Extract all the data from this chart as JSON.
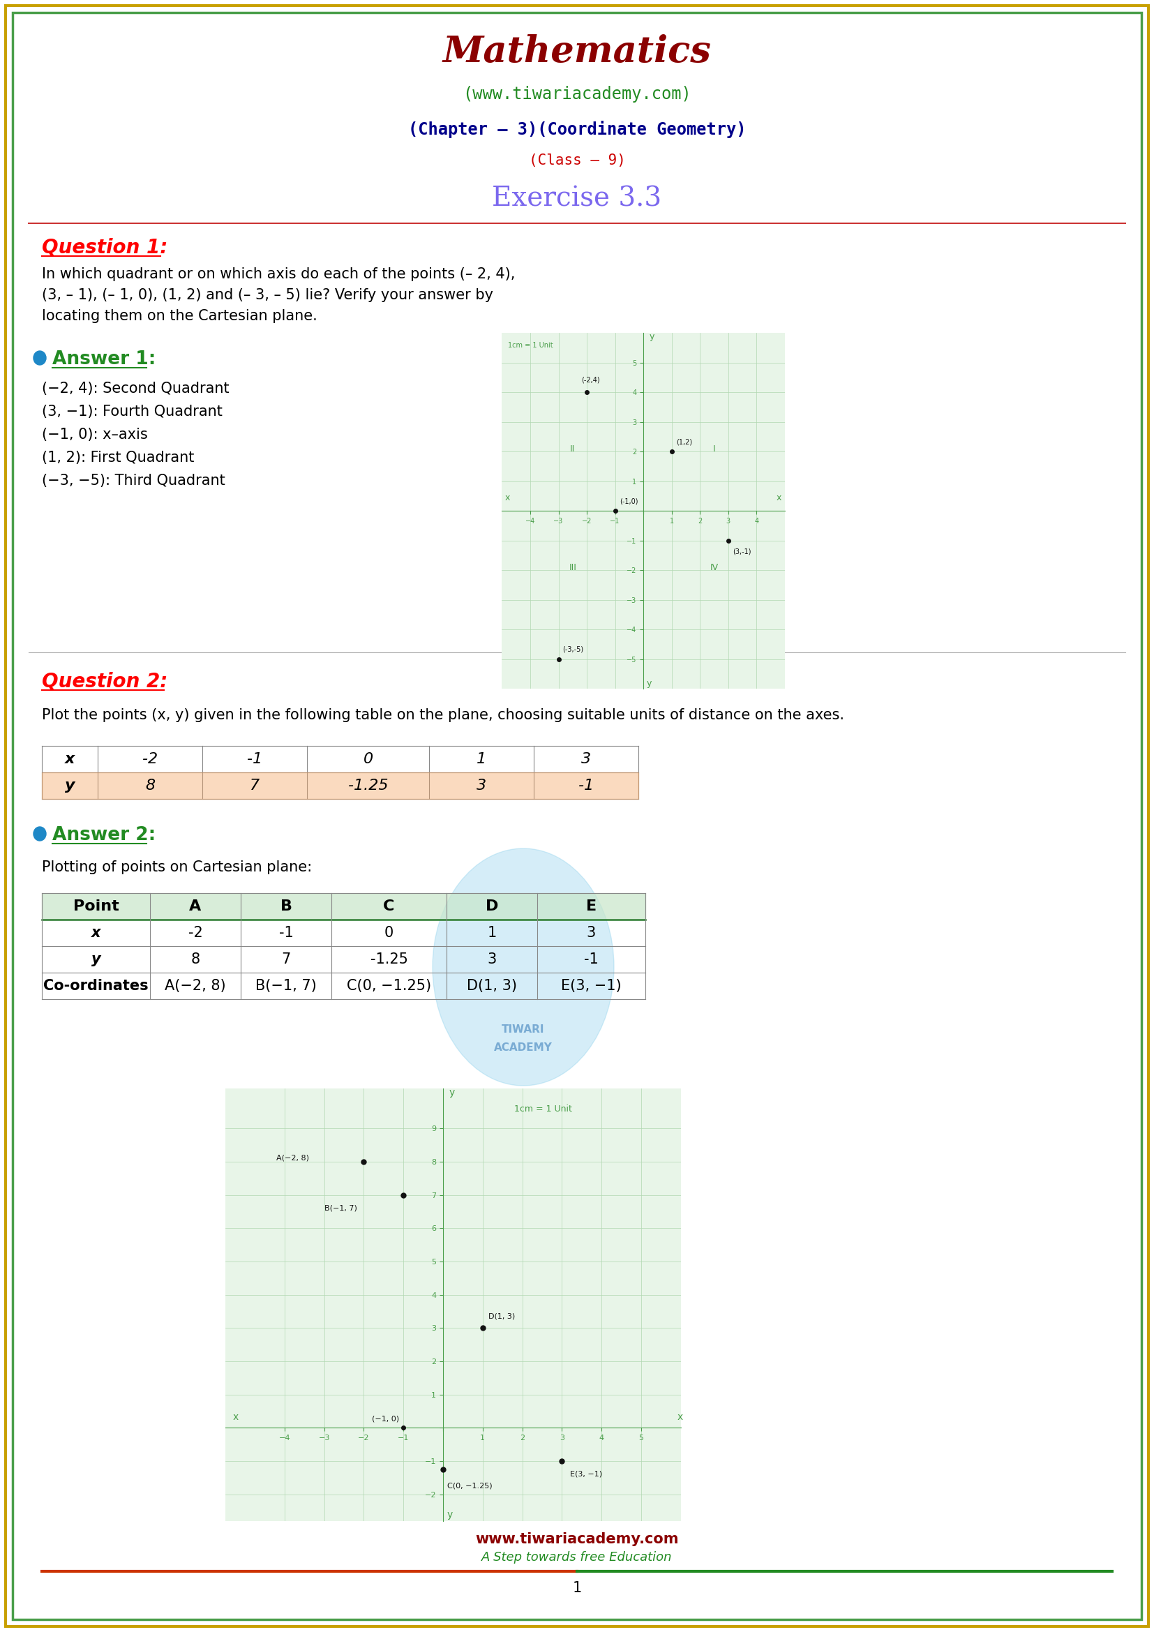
{
  "title": "Mathematics",
  "subtitle_web": "(www.tiwariacademy.com)",
  "subtitle_chapter": "(Chapter – 3)(Coordinate Geometry)",
  "subtitle_class": "(Class – 9)",
  "exercise": "Exercise 3.3",
  "page_bg": "#ffffff",
  "border_outer_color": "#c8a000",
  "border_inner_color": "#4a9e4a",
  "title_color": "#8b0000",
  "web_color": "#228b22",
  "chapter_color": "#00008b",
  "class_color": "#cc0000",
  "exercise_color": "#7b68ee",
  "question_color": "#ff0000",
  "answer_color": "#228b22",
  "body_color": "#000000",
  "q1_text": "In which quadrant or on which axis do each of the points (– 2, 4),\n(3, – 1), (– 1, 0), (1, 2) and (– 3, – 5) lie? Verify your answer by\nlocating them on the Cartesian plane.",
  "a1_lines": [
    "(−2, 4): Second Quadrant",
    "(3, −1): Fourth Quadrant",
    "(−1, 0): x–axis",
    "(1, 2): First Quadrant",
    "(−3, −5): Third Quadrant"
  ],
  "q2_text": "Plot the points (x, y) given in the following table on the plane, choosing suitable units of distance on the axes.",
  "table1_x": [
    "-2",
    "-1",
    "0",
    "1",
    "3"
  ],
  "table1_y": [
    "8",
    "7",
    "-1.25",
    "3",
    "-1"
  ],
  "table1_header_x": "x",
  "table1_header_y": "y",
  "a2_subtitle": "Plotting of points on Cartesian plane:",
  "table2_headers": [
    "Point",
    "A",
    "B",
    "C",
    "D",
    "E"
  ],
  "table2_x": [
    "-2",
    "-1",
    "0",
    "1",
    "3"
  ],
  "table2_y": [
    "8",
    "7",
    "-1.25",
    "3",
    "-1"
  ],
  "table2_coords": [
    "A(−2, 8)",
    "B(−1, 7)",
    "C(0, −1.25)",
    "D(1, 3)",
    "E(3, −1)"
  ],
  "footer_web": "www.tiwariacademy.com",
  "footer_tagline": "A Step towards free Education",
  "page_num": "1",
  "graph1_points": [
    [
      -2,
      4
    ],
    [
      3,
      -1
    ],
    [
      -1,
      0
    ],
    [
      1,
      2
    ],
    [
      -3,
      -5
    ]
  ],
  "graph1_labels": [
    "(-2,4)",
    "(3,-1)",
    "(-1,0)",
    "(1,2)",
    "(-3,-5)"
  ],
  "graph2_points": [
    [
      -2,
      8
    ],
    [
      -1,
      7
    ],
    [
      0,
      -1.25
    ],
    [
      1,
      3
    ],
    [
      3,
      -1
    ]
  ],
  "graph2_labels": [
    "A(−2, 8)",
    "B(−1, 7)",
    "C(0, −1.25)",
    "D(1, 3)",
    "E(3, −1)"
  ],
  "graph_color": "#4a9e4a",
  "grid_color": "#b0d8b0",
  "axis_color": "#4a9e4a",
  "point_color": "#1a1a1a",
  "tiwari_watermark_color": "#87ceeb"
}
